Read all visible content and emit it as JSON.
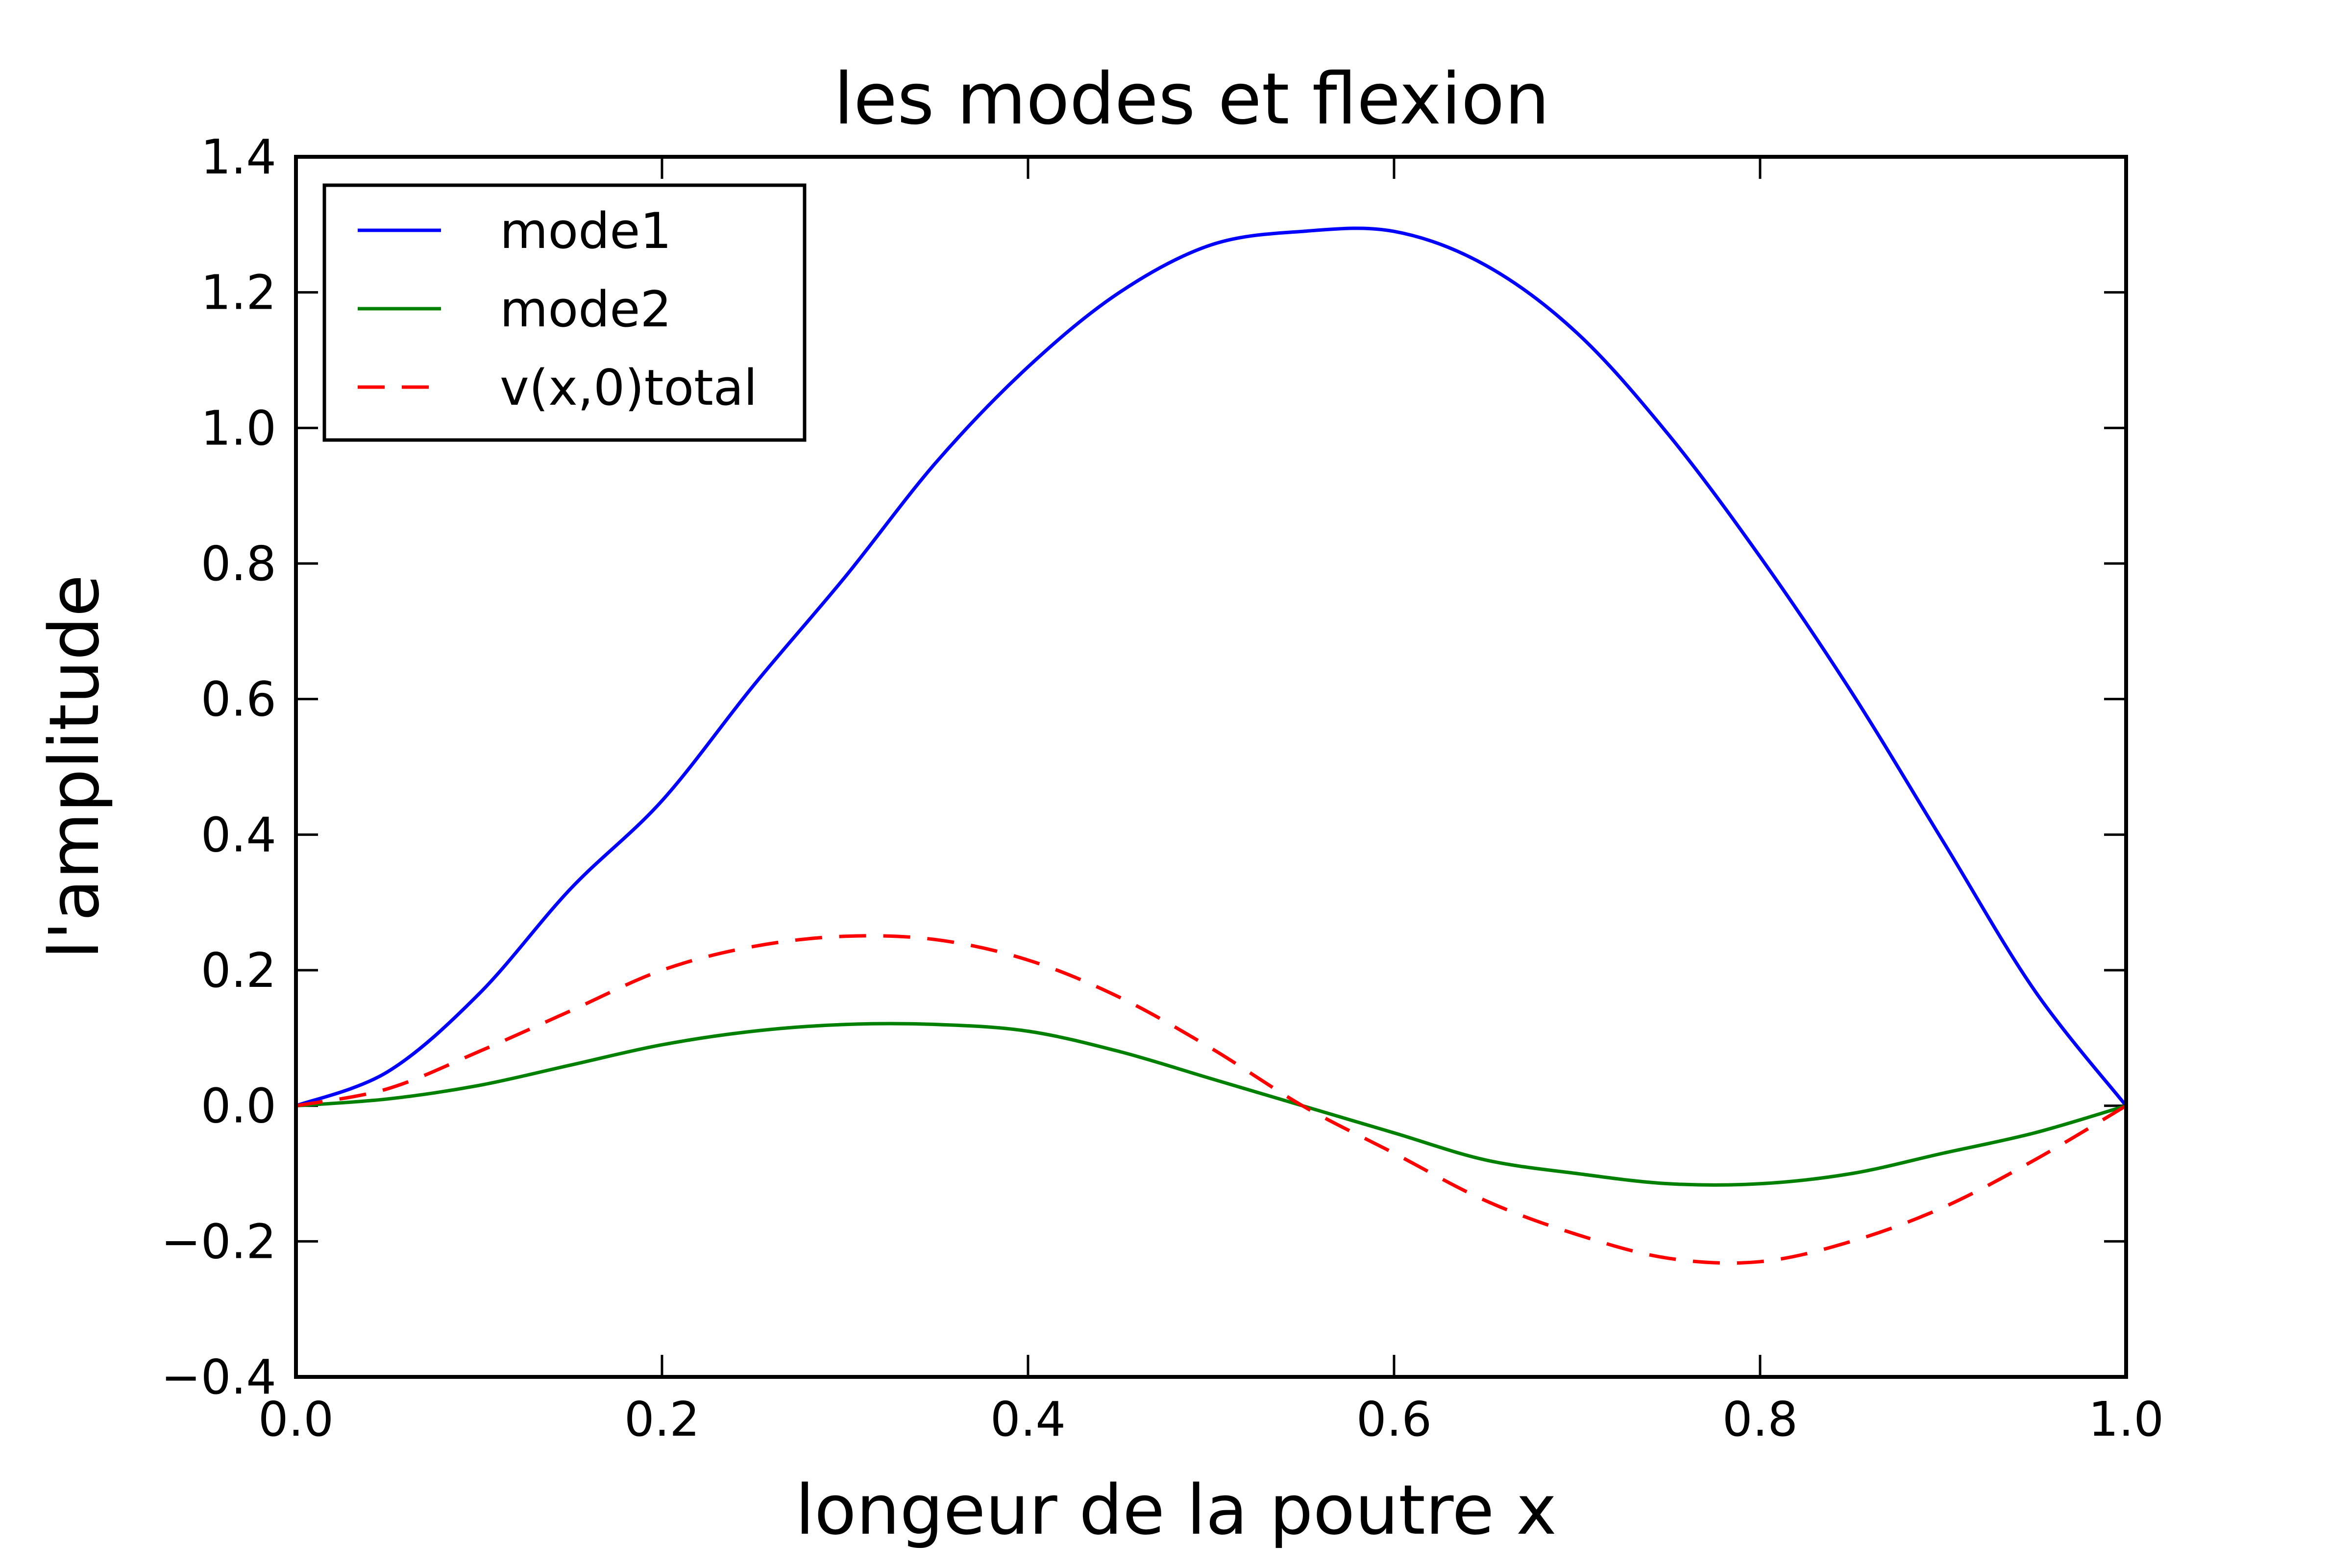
{
  "chart_data": {
    "type": "line",
    "title": "les modes et flexion",
    "xlabel": "longeur de la poutre  x",
    "ylabel": "l'amplitude",
    "xlim": [
      0.0,
      1.0
    ],
    "ylim": [
      -0.4,
      1.4
    ],
    "xticks": [
      0.0,
      0.2,
      0.4,
      0.6,
      0.8,
      1.0
    ],
    "xtick_labels": [
      "0.0",
      "0.2",
      "0.4",
      "0.6",
      "0.8",
      "1.0"
    ],
    "yticks": [
      -0.4,
      -0.2,
      0.0,
      0.2,
      0.4,
      0.6,
      0.8,
      1.0,
      1.2,
      1.4
    ],
    "ytick_labels": [
      "−0.4",
      "−0.2",
      "0.0",
      "0.2",
      "0.4",
      "0.6",
      "0.8",
      "1.0",
      "1.2",
      "1.4"
    ],
    "grid": false,
    "legend_position": "top-left",
    "x": [
      0.0,
      0.05,
      0.1,
      0.15,
      0.2,
      0.25,
      0.3,
      0.35,
      0.4,
      0.45,
      0.5,
      0.55,
      0.6,
      0.65,
      0.7,
      0.75,
      0.8,
      0.85,
      0.9,
      0.95,
      1.0
    ],
    "series": [
      {
        "name": "mode1",
        "color": "#0000ff",
        "style": "solid",
        "values": [
          0.0,
          0.05,
          0.165,
          0.32,
          0.45,
          0.62,
          0.78,
          0.95,
          1.09,
          1.2,
          1.27,
          1.29,
          1.29,
          1.24,
          1.14,
          0.99,
          0.81,
          0.61,
          0.39,
          0.17,
          0.0
        ]
      },
      {
        "name": "mode2",
        "color": "#008000",
        "style": "solid",
        "values": [
          0.0,
          0.01,
          0.03,
          0.06,
          0.09,
          0.11,
          0.12,
          0.12,
          0.11,
          0.08,
          0.04,
          0.0,
          -0.04,
          -0.08,
          -0.1,
          -0.115,
          -0.115,
          -0.1,
          -0.07,
          -0.04,
          0.0
        ]
      },
      {
        "name": "v(x,0)total",
        "color": "#ff0000",
        "style": "dashed",
        "values": [
          0.0,
          0.025,
          0.08,
          0.14,
          0.2,
          0.235,
          0.25,
          0.245,
          0.215,
          0.16,
          0.085,
          0.0,
          -0.07,
          -0.14,
          -0.19,
          -0.225,
          -0.23,
          -0.2,
          -0.15,
          -0.08,
          0.0
        ]
      }
    ]
  }
}
